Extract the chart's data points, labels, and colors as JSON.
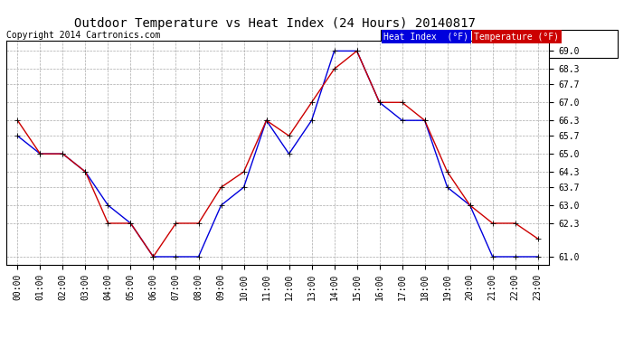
{
  "title": "Outdoor Temperature vs Heat Index (24 Hours) 20140817",
  "copyright": "Copyright 2014 Cartronics.com",
  "background_color": "#ffffff",
  "plot_bg_color": "#ffffff",
  "grid_color": "#aaaaaa",
  "hours": [
    "00:00",
    "01:00",
    "02:00",
    "03:00",
    "04:00",
    "05:00",
    "06:00",
    "07:00",
    "08:00",
    "09:00",
    "10:00",
    "11:00",
    "12:00",
    "13:00",
    "14:00",
    "15:00",
    "16:00",
    "17:00",
    "18:00",
    "19:00",
    "20:00",
    "21:00",
    "22:00",
    "23:00"
  ],
  "heat_index": [
    65.7,
    65.0,
    65.0,
    64.3,
    63.0,
    62.3,
    61.0,
    61.0,
    61.0,
    63.0,
    63.7,
    66.3,
    65.0,
    66.3,
    69.0,
    69.0,
    67.0,
    66.3,
    66.3,
    63.7,
    63.0,
    61.0,
    61.0,
    61.0
  ],
  "temperature": [
    66.3,
    65.0,
    65.0,
    64.3,
    62.3,
    62.3,
    61.0,
    62.3,
    62.3,
    63.7,
    64.3,
    66.3,
    65.7,
    67.0,
    68.3,
    69.0,
    67.0,
    67.0,
    66.3,
    64.3,
    63.0,
    62.3,
    62.3,
    61.7
  ],
  "heat_index_color": "#0000dd",
  "temperature_color": "#cc0000",
  "ylim_min": 60.7,
  "ylim_max": 69.4,
  "yticks": [
    61.0,
    62.3,
    63.0,
    63.7,
    64.3,
    65.0,
    65.7,
    66.3,
    67.0,
    67.7,
    68.3,
    69.0
  ],
  "title_fontsize": 10,
  "tick_fontsize": 7,
  "copyright_fontsize": 7,
  "legend_heat_bg": "#0000dd",
  "legend_temp_bg": "#cc0000",
  "legend_fontsize": 7,
  "marker": "+"
}
